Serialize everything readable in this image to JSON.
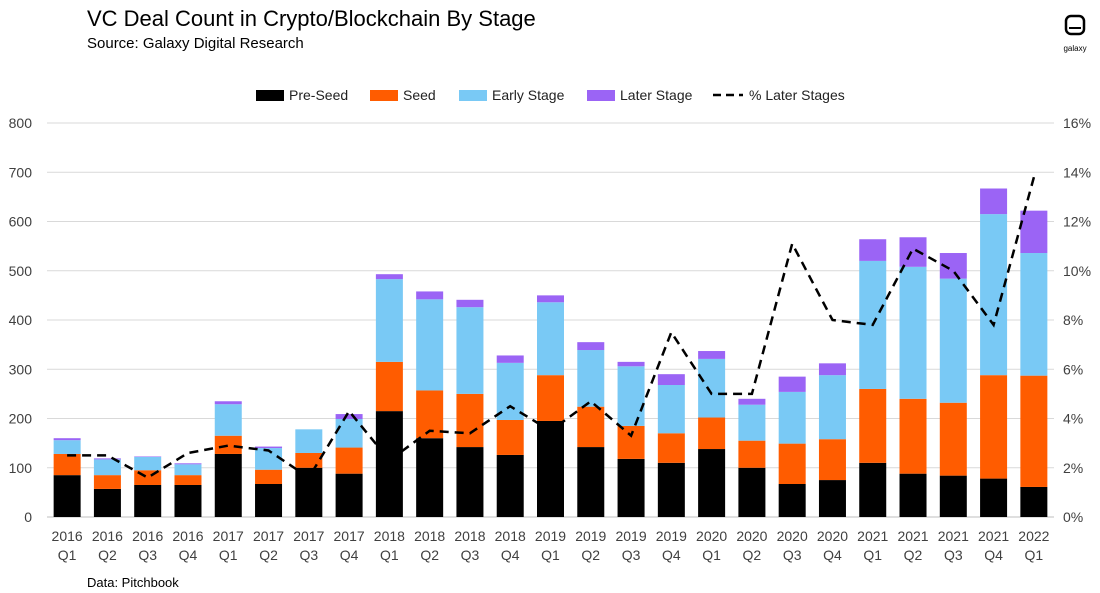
{
  "title": "VC Deal Count in Crypto/Blockchain By Stage",
  "subtitle": "Source: Galaxy Digital Research",
  "footer": "Data: Pitchbook",
  "logo_text": "galaxy",
  "colors": {
    "pre_seed": "#000000",
    "seed": "#ff5c00",
    "early": "#79c9f5",
    "later": "#9b64f5",
    "line": "#000000",
    "grid": "#d9d9d9",
    "text": "#404040"
  },
  "chart_data": {
    "type": "bar",
    "stacked": true,
    "title": "VC Deal Count in Crypto/Blockchain By Stage",
    "categories": [
      [
        "2016",
        "Q1"
      ],
      [
        "2016",
        "Q2"
      ],
      [
        "2016",
        "Q3"
      ],
      [
        "2016",
        "Q4"
      ],
      [
        "2017",
        "Q1"
      ],
      [
        "2017",
        "Q2"
      ],
      [
        "2017",
        "Q3"
      ],
      [
        "2017",
        "Q4"
      ],
      [
        "2018",
        "Q1"
      ],
      [
        "2018",
        "Q2"
      ],
      [
        "2018",
        "Q3"
      ],
      [
        "2018",
        "Q4"
      ],
      [
        "2019",
        "Q1"
      ],
      [
        "2019",
        "Q2"
      ],
      [
        "2019",
        "Q3"
      ],
      [
        "2019",
        "Q4"
      ],
      [
        "2020",
        "Q1"
      ],
      [
        "2020",
        "Q2"
      ],
      [
        "2020",
        "Q3"
      ],
      [
        "2020",
        "Q4"
      ],
      [
        "2021",
        "Q1"
      ],
      [
        "2021",
        "Q2"
      ],
      [
        "2021",
        "Q3"
      ],
      [
        "2021",
        "Q4"
      ],
      [
        "2022",
        "Q1"
      ]
    ],
    "series": [
      {
        "name": "Pre-Seed",
        "key": "pre_seed",
        "values": [
          85,
          57,
          65,
          65,
          128,
          67,
          100,
          88,
          215,
          160,
          142,
          126,
          195,
          142,
          118,
          110,
          138,
          100,
          67,
          75,
          110,
          88,
          84,
          78,
          61
        ]
      },
      {
        "name": "Seed",
        "key": "seed",
        "values": [
          43,
          28,
          30,
          20,
          37,
          29,
          30,
          53,
          100,
          97,
          108,
          71,
          93,
          82,
          67,
          60,
          64,
          55,
          82,
          83,
          150,
          152,
          148,
          210,
          226
        ]
      },
      {
        "name": "Early Stage",
        "key": "early",
        "values": [
          28,
          32,
          27,
          22,
          64,
          44,
          48,
          58,
          168,
          185,
          176,
          116,
          148,
          115,
          121,
          98,
          119,
          73,
          105,
          130,
          260,
          268,
          252,
          327,
          249
        ]
      },
      {
        "name": "Later Stage",
        "key": "later",
        "values": [
          4,
          2,
          1,
          2,
          6,
          3,
          0,
          10,
          10,
          16,
          15,
          15,
          14,
          16,
          9,
          22,
          16,
          12,
          31,
          24,
          44,
          60,
          52,
          52,
          86
        ]
      }
    ],
    "line_series": {
      "name": "% Later Stages",
      "values": [
        2.5,
        2.5,
        1.6,
        2.6,
        2.9,
        2.7,
        1.6,
        4.3,
        2.3,
        3.5,
        3.4,
        4.5,
        3.5,
        4.7,
        3.3,
        7.5,
        5.0,
        5.0,
        11.1,
        8.0,
        7.8,
        10.9,
        10.0,
        7.8,
        13.8
      ]
    },
    "y_left": {
      "min": 0,
      "max": 800,
      "ticks": [
        "0",
        "100",
        "200",
        "300",
        "400",
        "500",
        "600",
        "700",
        "800"
      ]
    },
    "y_right": {
      "min": 0,
      "max": 16,
      "ticks": [
        "0%",
        "2%",
        "4%",
        "6%",
        "8%",
        "10%",
        "12%",
        "14%",
        "16%"
      ]
    },
    "legend": {
      "position": "top-center",
      "items": [
        "Pre-Seed",
        "Seed",
        "Early Stage",
        "Later Stage",
        "% Later Stages"
      ]
    },
    "grid": true
  }
}
